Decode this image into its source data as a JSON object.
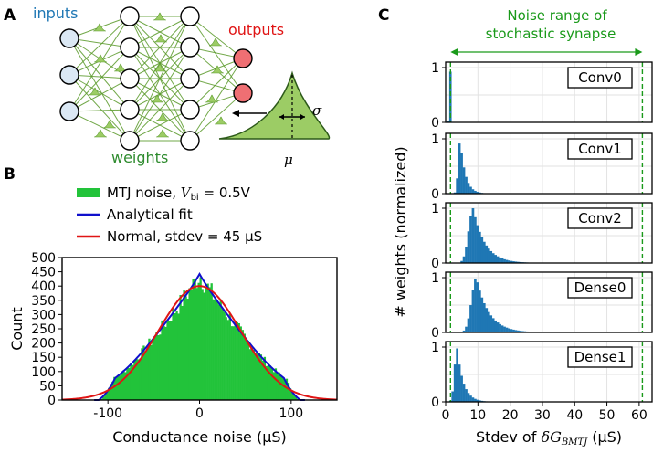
{
  "colors": {
    "input_node": "#dbe8f4",
    "output_node": "#ef6f73",
    "edge": "#5a9a2a",
    "weight_fill": "#9ccc65",
    "hist_green": "#22c33a",
    "fit_blue": "#1010cc",
    "normal_red": "#e01515",
    "bar_blue": "#1f77b4",
    "range_green": "#1a9a1a",
    "inputs_text": "#1f77b4",
    "outputs_text": "#e01515",
    "weights_text": "#2e8b2e"
  },
  "panel_a": {
    "letter": "A",
    "inputs_label": "inputs",
    "outputs_label": "outputs",
    "weights_label": "weights",
    "sigma": "σ",
    "mu": "μ"
  },
  "panel_b": {
    "letter": "B",
    "legend": {
      "item1": "MTJ noise, ",
      "item1_var": "V",
      "item1_sub": "bi",
      "item1_val": " = 0.5V",
      "item2": "Analytical fit",
      "item3": "Normal, stdev = 45 µS"
    }
  },
  "panel_c": {
    "letter": "C",
    "range_title_1": "Noise range of",
    "range_title_2": "stochastic synapse"
  },
  "chart_data": [
    {
      "type": "bar",
      "title": "",
      "xlabel": "Conductance noise (µS)",
      "ylabel": "Count",
      "xlim": [
        -150,
        150
      ],
      "ylim": [
        0,
        500
      ],
      "xticks": [
        -100,
        0,
        100
      ],
      "yticks": [
        0,
        50,
        100,
        150,
        200,
        250,
        300,
        350,
        400,
        450,
        500
      ],
      "series": [
        {
          "name": "MTJ noise, Vbi = 0.5V",
          "kind": "histogram",
          "x_range": [
            -108,
            108
          ],
          "peak": 440
        },
        {
          "name": "Analytical fit",
          "kind": "line",
          "x_range": [
            -110,
            110
          ],
          "peak": 445
        },
        {
          "name": "Normal, stdev = 45 µS",
          "kind": "line",
          "mean": 0,
          "stdev": 45,
          "peak": 400
        }
      ]
    },
    {
      "type": "bar",
      "xlabel": "Stdev of δG_BMTJ (µS)",
      "xlabel_parts": {
        "pre": "Stdev of ",
        "var": "δG",
        "sub": "BMTJ",
        "post": " (µS)"
      },
      "ylabel": "# weights (normalized)",
      "xlim": [
        0,
        64
      ],
      "xticks": [
        0,
        10,
        20,
        30,
        40,
        50,
        60
      ],
      "noise_range": [
        1.5,
        61
      ],
      "panels": [
        {
          "name": "Conv0",
          "yticks": [
            0,
            1
          ],
          "ylim": [
            0,
            1.1
          ],
          "mode": 1.4,
          "spread": 0.5
        },
        {
          "name": "Conv1",
          "yticks": [
            0,
            1
          ],
          "ylim": [
            0,
            1.1
          ],
          "mode": 4.5,
          "spread": 1.2
        },
        {
          "name": "Conv2",
          "yticks": [
            0,
            1
          ],
          "ylim": [
            0,
            1.1
          ],
          "mode": 8.5,
          "spread": 2.8
        },
        {
          "name": "Dense0",
          "yticks": [
            0,
            1
          ],
          "ylim": [
            0,
            1.1
          ],
          "mode": 9.5,
          "spread": 3.0
        },
        {
          "name": "Dense1",
          "yticks": [
            0,
            1
          ],
          "ylim": [
            0,
            1.1
          ],
          "mode": 3.5,
          "spread": 1.5
        }
      ]
    }
  ]
}
